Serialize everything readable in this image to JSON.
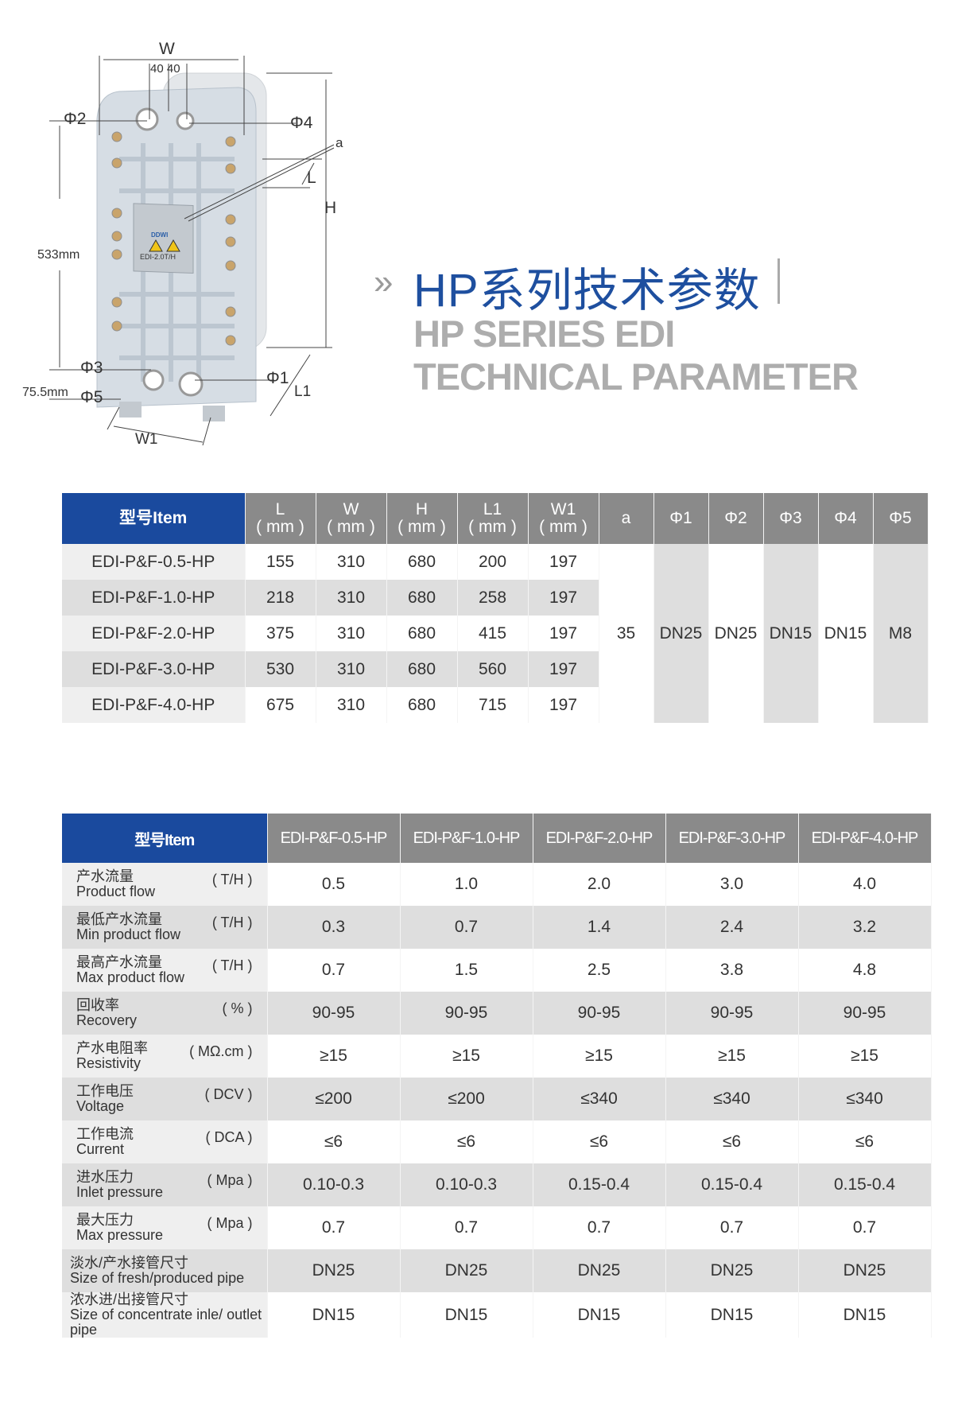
{
  "diagram": {
    "labels": {
      "w": "W",
      "w_offsets": "40 40",
      "phi2": "Φ2",
      "phi4": "Φ4",
      "a": "a",
      "l": "L",
      "h": "H",
      "height_533": "533mm",
      "phi3": "Φ3",
      "phi1": "Φ1",
      "height_75": "75.5mm",
      "phi5": "Φ5",
      "l1": "L1",
      "w1": "W1"
    },
    "plate_brand": "DDWI",
    "plate_model": "EDI-2.0T/H"
  },
  "title": {
    "chevron": "»",
    "cn": "HP系列技术参数",
    "en_line1": "HP SERIES EDI",
    "en_line2": "TECHNICAL PARAMETER",
    "accent": "#1e4f9f"
  },
  "dimensions_table": {
    "headers": {
      "item": "型号Item",
      "l": "L",
      "w": "W",
      "h": "H",
      "l1": "L1",
      "w1": "W1",
      "unit": "( mm )",
      "a": "a",
      "phi1": "Φ1",
      "phi2": "Φ2",
      "phi3": "Φ3",
      "phi4": "Φ4",
      "phi5": "Φ5"
    },
    "rows": [
      {
        "model": "EDI-P&F-0.5-HP",
        "l": "155",
        "w": "310",
        "h": "680",
        "l1": "200",
        "w1": "197"
      },
      {
        "model": "EDI-P&F-1.0-HP",
        "l": "218",
        "w": "310",
        "h": "680",
        "l1": "258",
        "w1": "197"
      },
      {
        "model": "EDI-P&F-2.0-HP",
        "l": "375",
        "w": "310",
        "h": "680",
        "l1": "415",
        "w1": "197"
      },
      {
        "model": "EDI-P&F-3.0-HP",
        "l": "530",
        "w": "310",
        "h": "680",
        "l1": "560",
        "w1": "197"
      },
      {
        "model": "EDI-P&F-4.0-HP",
        "l": "675",
        "w": "310",
        "h": "680",
        "l1": "715",
        "w1": "197"
      }
    ],
    "shared": {
      "a": "35",
      "phi1": "DN25",
      "phi2": "DN25",
      "phi3": "DN15",
      "phi4": "DN15",
      "phi5": "M8"
    }
  },
  "spec_table": {
    "header_item": "型号Item",
    "models": [
      "EDI-P&F-0.5-HP",
      "EDI-P&F-1.0-HP",
      "EDI-P&F-2.0-HP",
      "EDI-P&F-3.0-HP",
      "EDI-P&F-4.0-HP"
    ],
    "rows": [
      {
        "cn": "产水流量",
        "en": "Product flow",
        "unit": "( T/H )",
        "values": [
          "0.5",
          "1.0",
          "2.0",
          "3.0",
          "4.0"
        ]
      },
      {
        "cn": "最低产水流量",
        "en": "Min product flow",
        "unit": "( T/H )",
        "values": [
          "0.3",
          "0.7",
          "1.4",
          "2.4",
          "3.2"
        ]
      },
      {
        "cn": "最高产水流量",
        "en": "Max product flow",
        "unit": "( T/H )",
        "values": [
          "0.7",
          "1.5",
          "2.5",
          "3.8",
          "4.8"
        ]
      },
      {
        "cn": "回收率",
        "en": "Recovery",
        "unit": "( % )",
        "values": [
          "90-95",
          "90-95",
          "90-95",
          "90-95",
          "90-95"
        ]
      },
      {
        "cn": "产水电阻率",
        "en": "Resistivity",
        "unit": "( MΩ.cm )",
        "values": [
          "≥15",
          "≥15",
          "≥15",
          "≥15",
          "≥15"
        ]
      },
      {
        "cn": "工作电压",
        "en": "Voltage",
        "unit": "( DCV )",
        "values": [
          "≤200",
          "≤200",
          "≤340",
          "≤340",
          "≤340"
        ]
      },
      {
        "cn": "工作电流",
        "en": "Current",
        "unit": "( DCA )",
        "values": [
          "≤6",
          "≤6",
          "≤6",
          "≤6",
          "≤6"
        ]
      },
      {
        "cn": "进水压力",
        "en": "Inlet pressure",
        "unit": "( Mpa )",
        "values": [
          "0.10-0.3",
          "0.10-0.3",
          "0.15-0.4",
          "0.15-0.4",
          "0.15-0.4"
        ]
      },
      {
        "cn": "最大压力",
        "en": "Max pressure",
        "unit": "( Mpa )",
        "values": [
          "0.7",
          "0.7",
          "0.7",
          "0.7",
          "0.7"
        ]
      },
      {
        "cn": "淡水/产水接管尺寸",
        "en": "Size of fresh/produced pipe",
        "values": [
          "DN25",
          "DN25",
          "DN25",
          "DN25",
          "DN25"
        ]
      },
      {
        "cn": "浓水进/出接管尺寸",
        "en": "Size of concentrate inle/ outlet pipe",
        "values": [
          "DN15",
          "DN15",
          "DN15",
          "DN15",
          "DN15"
        ]
      }
    ]
  },
  "colors": {
    "header_blue": "#1a4a9e",
    "header_grey": "#8a8a8a",
    "row_grey": "#dedede"
  }
}
